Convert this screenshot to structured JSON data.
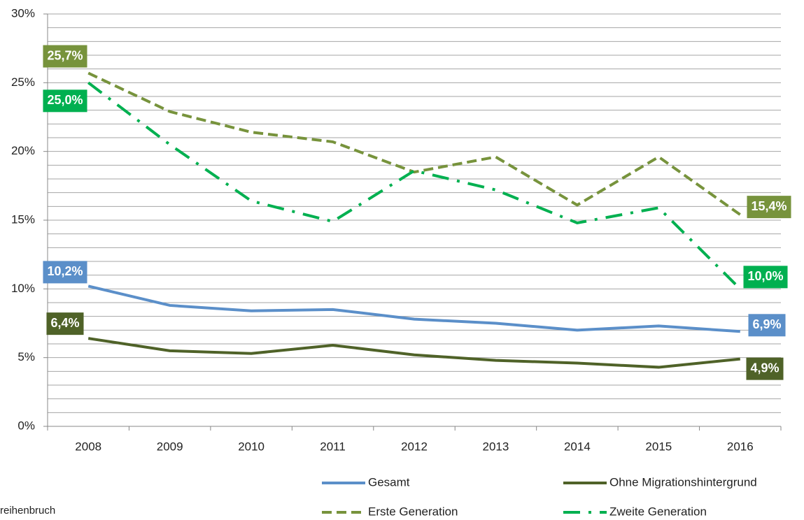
{
  "chart_data": {
    "type": "line",
    "categories": [
      "2008",
      "2009",
      "2010",
      "2011",
      "2012",
      "2013",
      "2014",
      "2015",
      "2016"
    ],
    "series": [
      {
        "name": "Gesamt",
        "color": "#5b8fc9",
        "values": [
          10.2,
          8.8,
          8.4,
          8.5,
          7.8,
          7.5,
          7.0,
          7.3,
          6.9
        ],
        "value_labels": [
          "10,2%",
          null,
          null,
          null,
          null,
          null,
          null,
          null,
          "6,9%"
        ]
      },
      {
        "name": "Ohne Migrationshintergrund",
        "color": "#4f6228",
        "values": [
          6.4,
          5.5,
          5.3,
          5.9,
          5.2,
          4.8,
          4.6,
          4.3,
          4.9
        ],
        "value_labels": [
          "6,4%",
          null,
          null,
          null,
          null,
          null,
          null,
          null,
          "4,9%"
        ]
      },
      {
        "name": "Erste Generation",
        "color": "#77933c",
        "dash": "dashed",
        "values": [
          25.7,
          22.9,
          21.4,
          20.7,
          18.5,
          19.6,
          16.1,
          19.6,
          15.4
        ],
        "value_labels": [
          "25,7%",
          null,
          null,
          null,
          null,
          null,
          null,
          null,
          "15,4%"
        ]
      },
      {
        "name": "Zweite Generation",
        "color": "#00b050",
        "dash": "dashdot",
        "values": [
          25.0,
          20.5,
          16.4,
          14.9,
          18.6,
          17.2,
          14.8,
          15.9,
          10.0
        ],
        "value_labels": [
          "25,0%",
          null,
          null,
          null,
          null,
          null,
          null,
          null,
          "10,0%"
        ]
      }
    ],
    "ylim": [
      0,
      30
    ],
    "yticks": [
      {
        "value": 0,
        "label": "0%"
      },
      {
        "value": 5,
        "label": "5%"
      },
      {
        "value": 10,
        "label": "10%"
      },
      {
        "value": 15,
        "label": "15%"
      },
      {
        "value": 20,
        "label": "20%"
      },
      {
        "value": 25,
        "label": "25%"
      },
      {
        "value": 30,
        "label": "30%"
      }
    ],
    "minor_yticks": [
      1,
      2,
      3,
      4,
      6,
      7,
      8,
      9,
      11,
      12,
      13,
      14,
      16,
      17,
      18,
      19,
      21,
      22,
      23,
      24,
      26,
      27,
      28,
      29
    ],
    "grid": true,
    "legend": "bottom",
    "note": "reihenbruch"
  }
}
